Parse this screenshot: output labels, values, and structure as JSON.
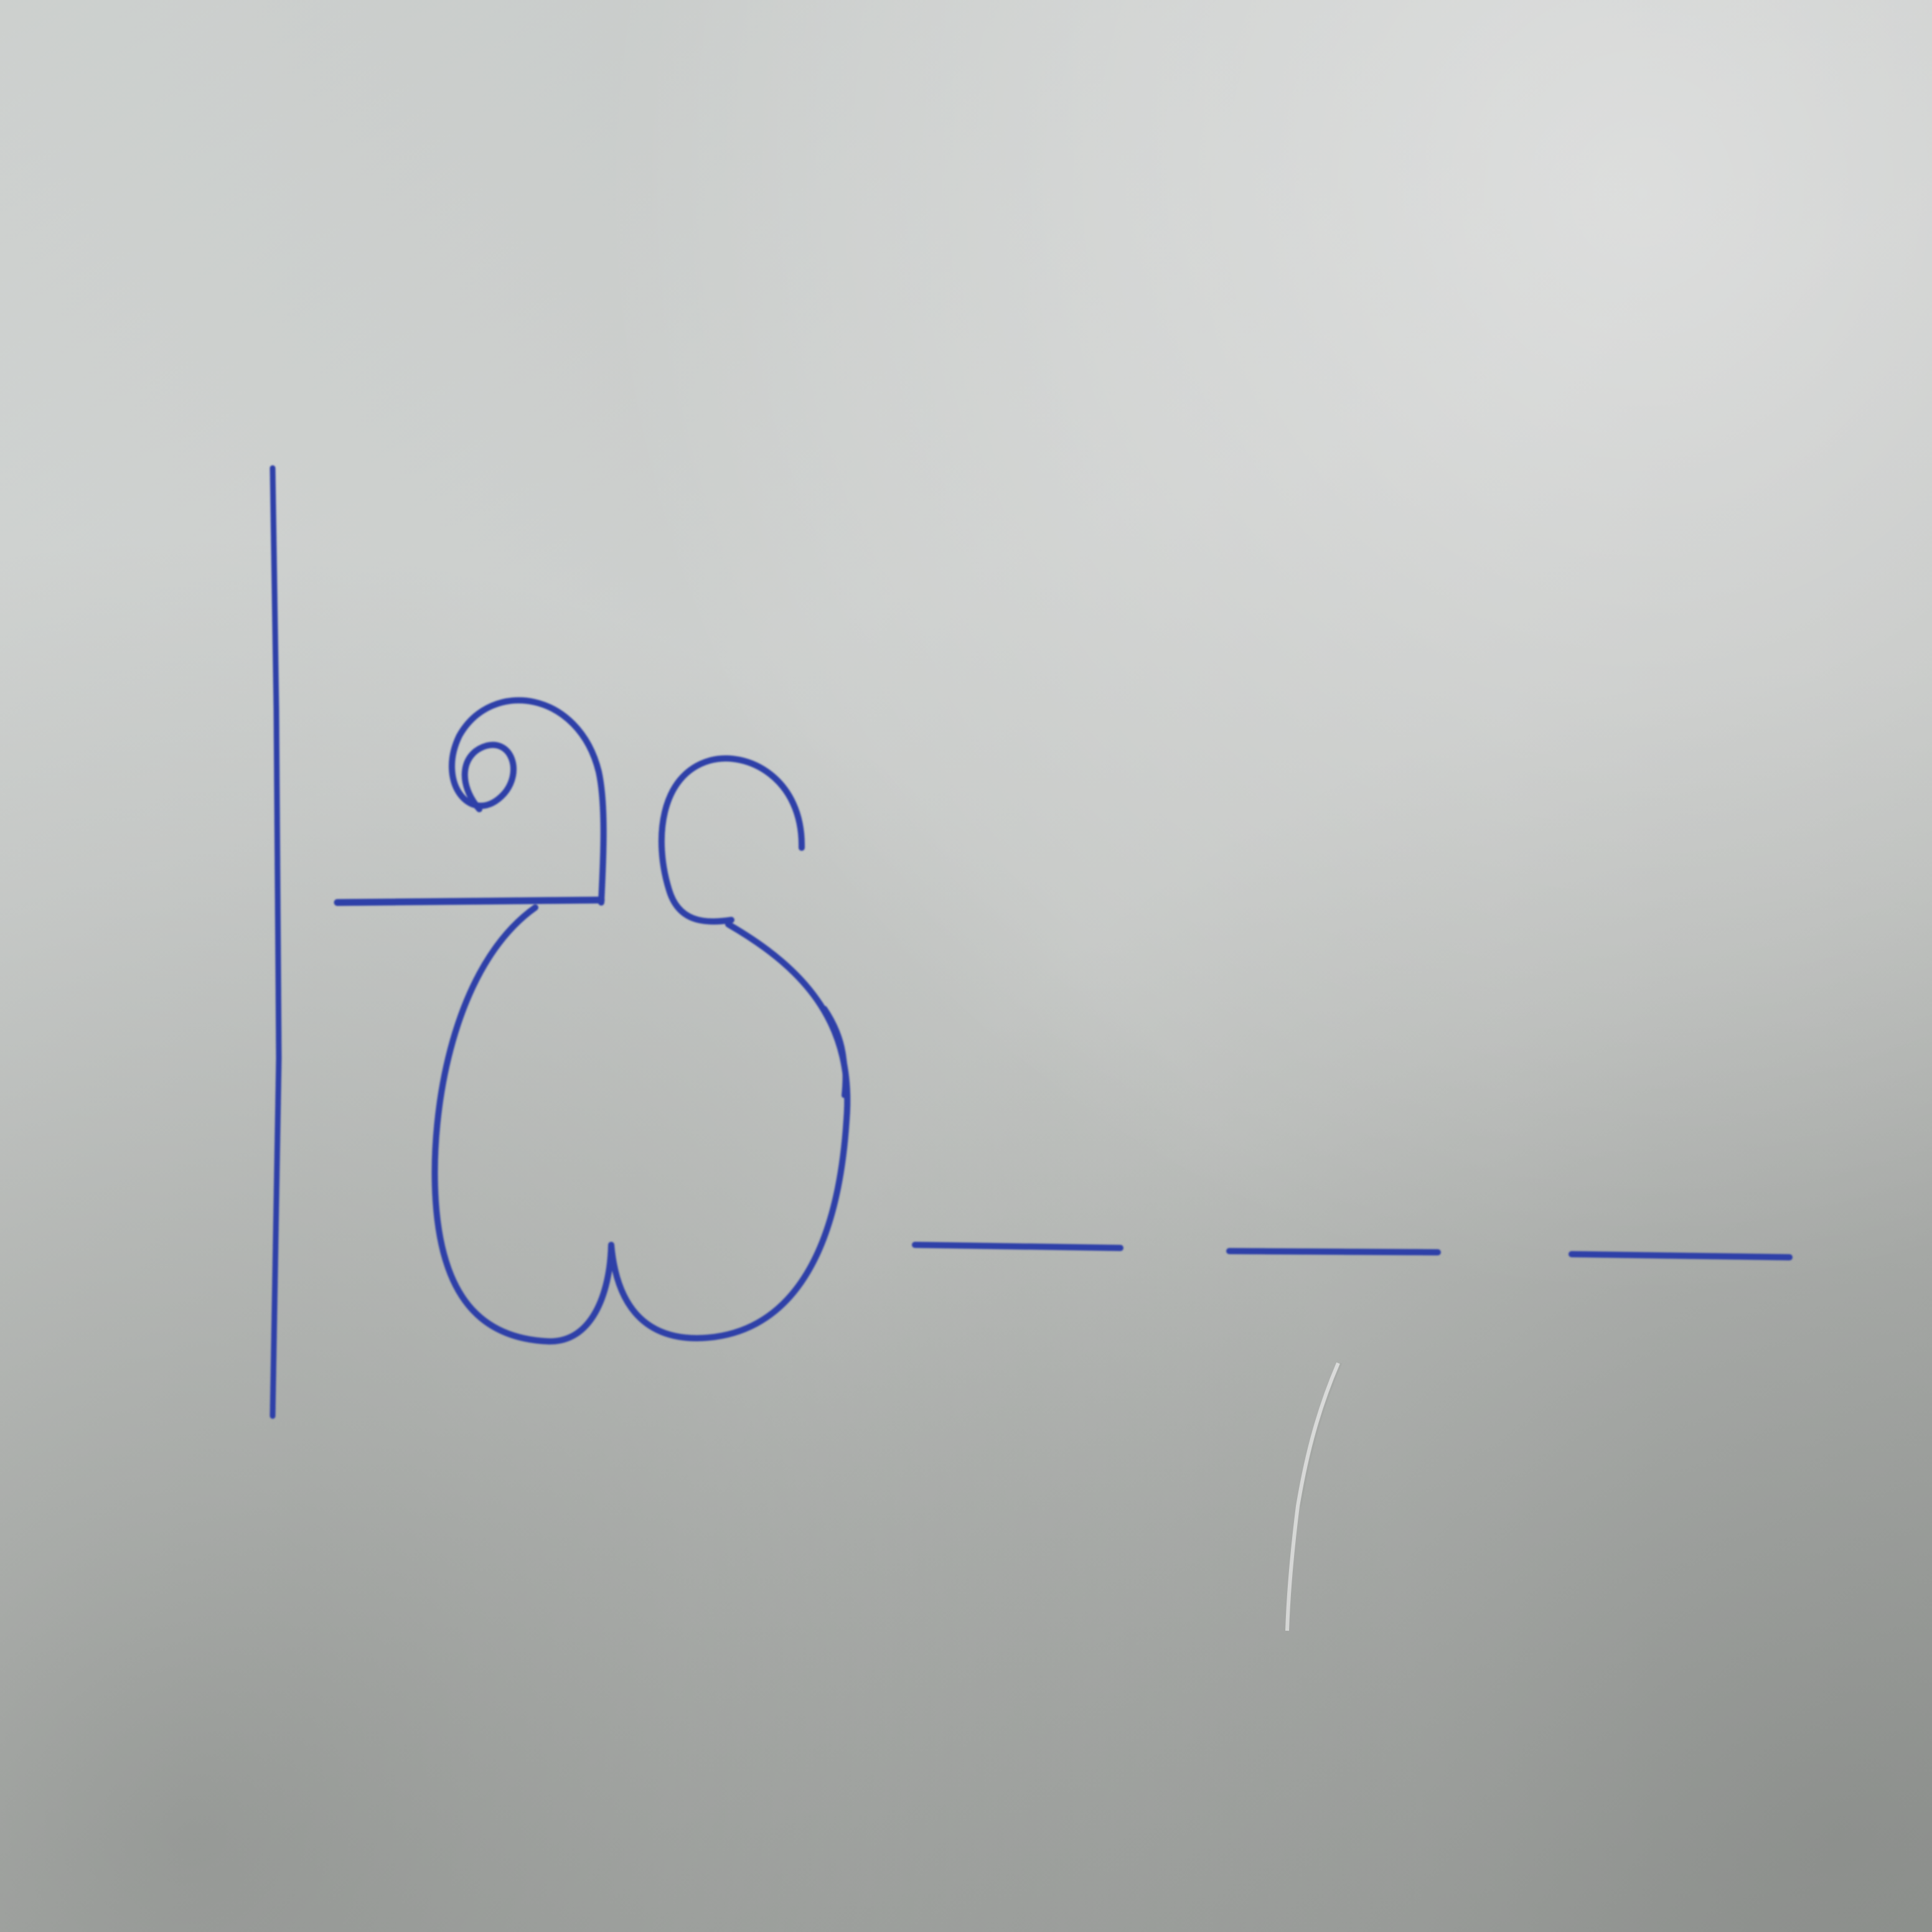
{
  "scene": {
    "description_kind": "photo",
    "paper_color": "#cfd2cf",
    "ink_color": "#2f3fa8",
    "handwritten_glyph": "ලො",
    "trailing_blanks": 3
  }
}
